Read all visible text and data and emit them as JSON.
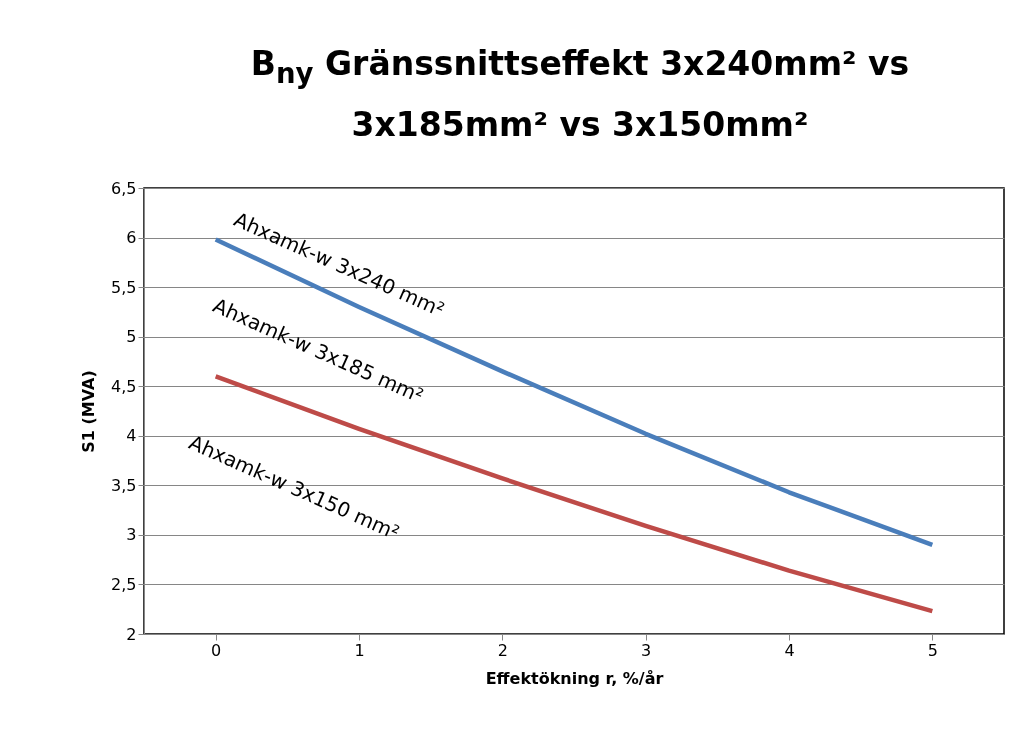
{
  "chart_data": {
    "type": "line",
    "title": "B$_{ny}$ Gränssnittseffekt 3x240mm² vs 3x185mm² vs 3x150mm²",
    "xlabel": "Effektökning r, %/år",
    "ylabel": "S1 (MVA)",
    "categories": [
      "0",
      "1",
      "2",
      "3",
      "4",
      "5"
    ],
    "series": [
      {
        "color": "#4a7ebb",
        "values": [
          5.98,
          5.3,
          4.65,
          4.02,
          3.43,
          2.9
        ]
      },
      {
        "color": "#be4b48",
        "values": [
          4.6,
          4.07,
          3.57,
          3.09,
          2.64,
          2.23
        ]
      }
    ],
    "ylim": [
      2,
      6.5
    ],
    "yticks": [
      {
        "value": 2,
        "label": "2"
      },
      {
        "value": 2.5,
        "label": "2,5"
      },
      {
        "value": 3,
        "label": "3"
      },
      {
        "value": 3.5,
        "label": "3,5"
      },
      {
        "value": 4,
        "label": "4"
      },
      {
        "value": 4.5,
        "label": "4,5"
      },
      {
        "value": 5,
        "label": "5"
      },
      {
        "value": 5.5,
        "label": "5,5"
      },
      {
        "value": 6,
        "label": "6"
      },
      {
        "value": 6.5,
        "label": "6,5"
      }
    ],
    "grid": "y",
    "legend": false,
    "annotations": [
      "Ahxamk-w 3x240 mm²",
      "Ahxamk-w 3x185 mm²",
      "Ahxamk-w 3x150 mm²"
    ]
  }
}
